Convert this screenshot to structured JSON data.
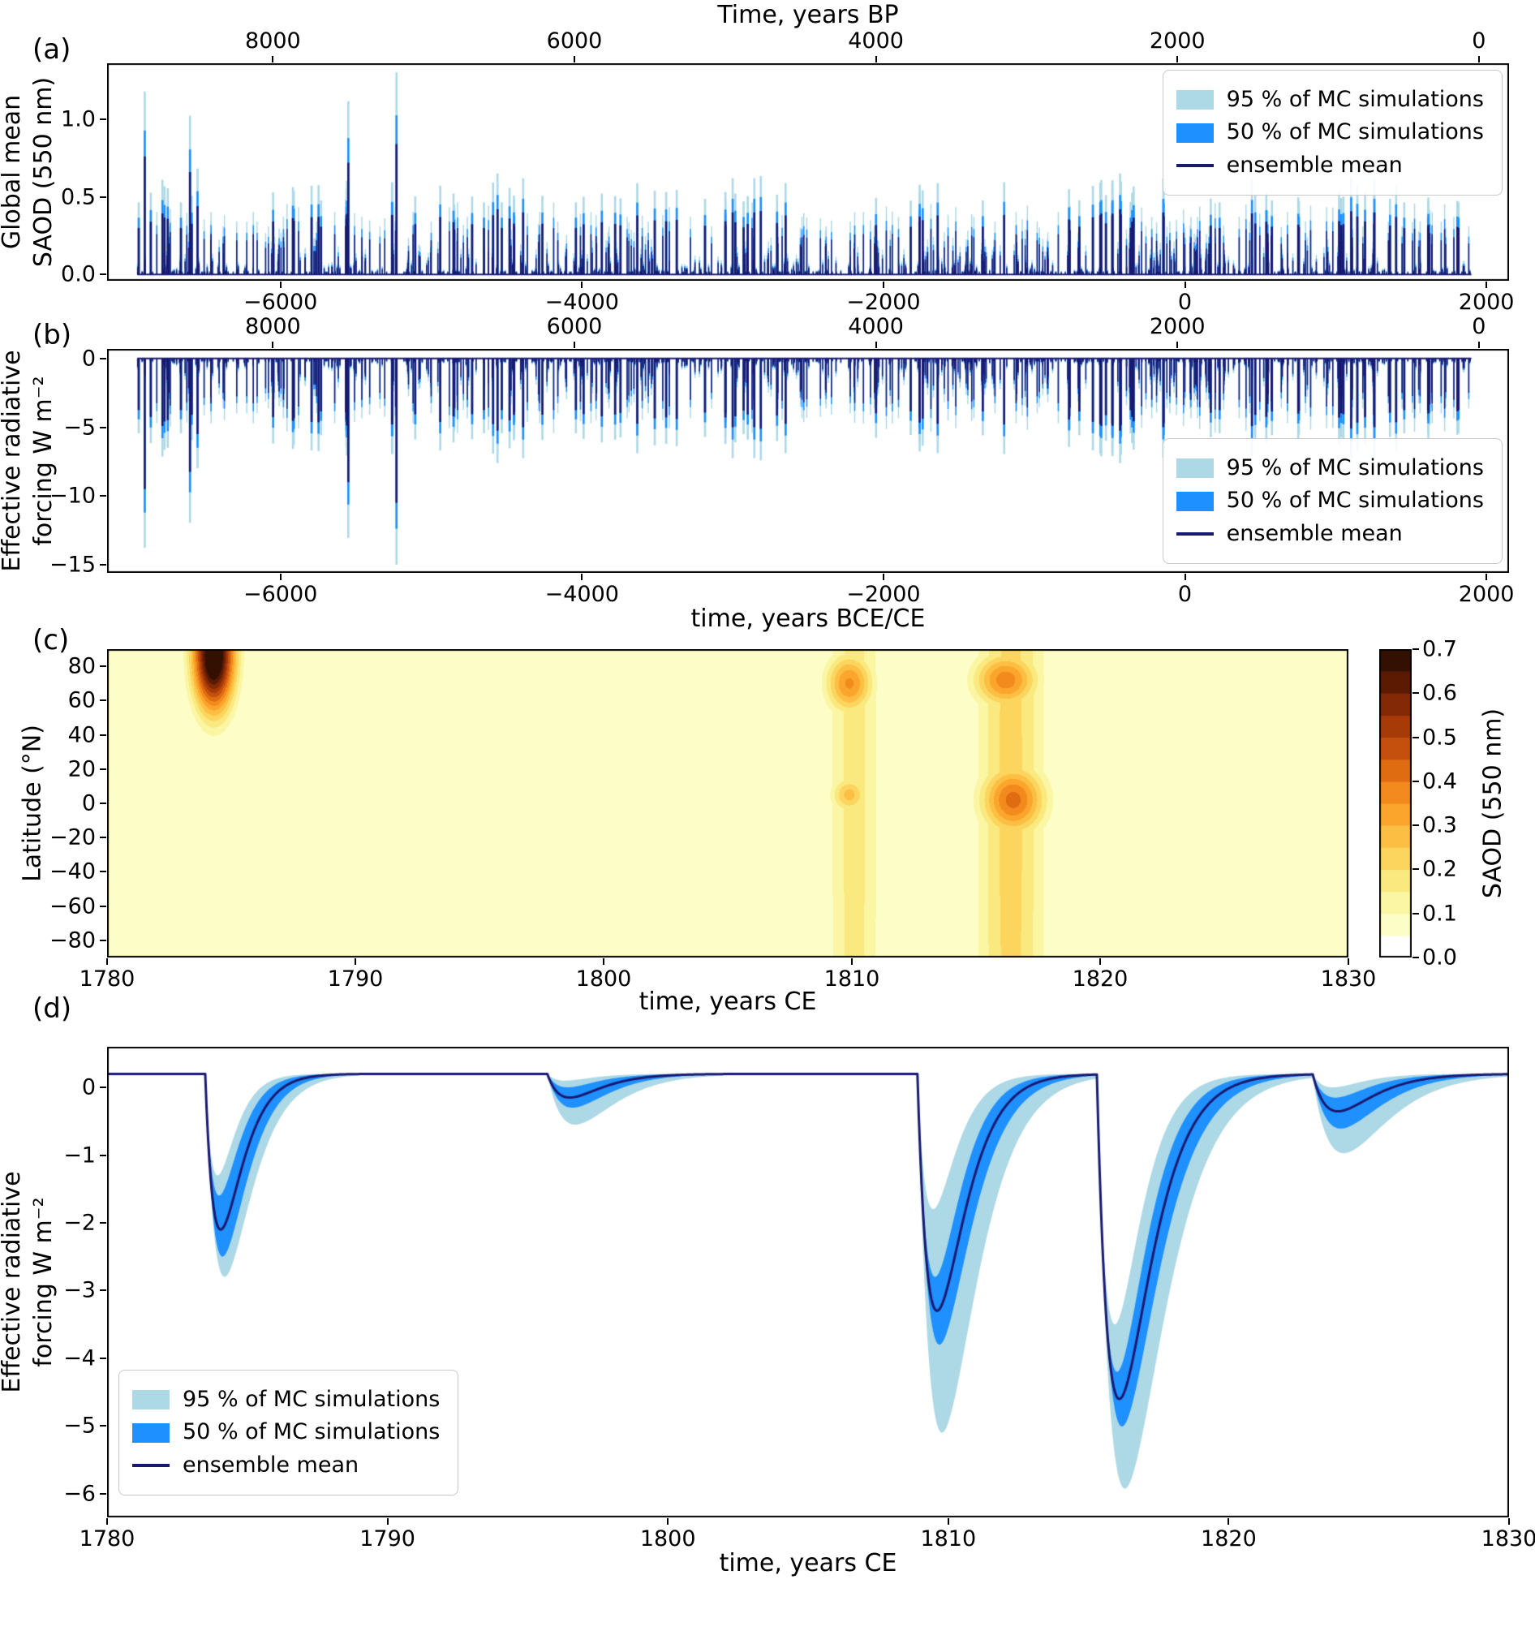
{
  "panels": {
    "a": "(a)",
    "b": "(b)",
    "c": "(c)",
    "d": "(d)"
  },
  "legend": {
    "p95": "95 % of MC simulations",
    "p50": "50 % of MC simulations",
    "mean": "ensemble mean"
  },
  "colors": {
    "p95_band": "#ADD8E6",
    "p50_band": "#1E90FF",
    "ensemble_mean": "#191970",
    "axis": "#000000",
    "background": "#FFFFFF",
    "heatmap_bands": [
      "#FFFFFF",
      "#FDFDC8",
      "#FBF6A3",
      "#FAE97F",
      "#FBD55D",
      "#FCBF43",
      "#FBA52C",
      "#F28A1D",
      "#E06C12",
      "#C5500D",
      "#A63B08",
      "#842905",
      "#5D1A03",
      "#331002"
    ]
  },
  "chart_data": [
    {
      "type": "bar",
      "panel": "a",
      "x_top_label": "Time, years BP",
      "ylabel_lines": [
        "Global mean",
        "SAOD (550 nm)"
      ],
      "x_range": [
        -7150,
        2150
      ],
      "y_range": [
        -0.04,
        1.36
      ],
      "x_ticks": [
        {
          "v": -6000,
          "label": "−6000"
        },
        {
          "v": -4000,
          "label": "−4000"
        },
        {
          "v": -2000,
          "label": "−2000"
        },
        {
          "v": 0,
          "label": "0"
        },
        {
          "v": 2000,
          "label": "2000"
        }
      ],
      "x_ticks_top_bp": [
        {
          "v": 8000,
          "label": "8000"
        },
        {
          "v": 6000,
          "label": "6000"
        },
        {
          "v": 4000,
          "label": "4000"
        },
        {
          "v": 2000,
          "label": "2000"
        },
        {
          "v": 0,
          "label": "0"
        }
      ],
      "y_ticks": [
        {
          "v": 0,
          "label": "0.0"
        },
        {
          "v": 0.5,
          "label": "0.5"
        },
        {
          "v": 1,
          "label": "1.0"
        }
      ],
      "band_multipliers": {
        "p95": 1.55,
        "p50": 1.22
      },
      "major_eruptions_saod_mean": [
        [
          -6940,
          0.3
        ],
        [
          -6900,
          0.76
        ],
        [
          -6860,
          0.34
        ],
        [
          -6820,
          0.26
        ],
        [
          -6740,
          0.2
        ],
        [
          -6660,
          0.3
        ],
        [
          -6600,
          0.66
        ],
        [
          -6550,
          0.44
        ],
        [
          -6460,
          0.26
        ],
        [
          -6380,
          0.2
        ],
        [
          -6290,
          0.22
        ],
        [
          -6180,
          0.26
        ],
        [
          -6080,
          0.2
        ],
        [
          -5980,
          0.24
        ],
        [
          -5880,
          0.28
        ],
        [
          -5760,
          0.22
        ],
        [
          -5640,
          0.26
        ],
        [
          -5550,
          0.72
        ],
        [
          -5460,
          0.24
        ],
        [
          -5340,
          0.2
        ],
        [
          -5230,
          0.84
        ],
        [
          -5120,
          0.26
        ],
        [
          -5000,
          0.22
        ],
        [
          -4880,
          0.28
        ],
        [
          -4760,
          0.24
        ],
        [
          -4650,
          0.3
        ],
        [
          -4560,
          0.42
        ],
        [
          -4480,
          0.36
        ],
        [
          -4390,
          0.4
        ],
        [
          -4280,
          0.26
        ],
        [
          -4160,
          0.22
        ],
        [
          -4040,
          0.3
        ],
        [
          -3940,
          0.26
        ],
        [
          -3820,
          0.2
        ],
        [
          -3700,
          0.24
        ],
        [
          -3560,
          0.22
        ],
        [
          -3420,
          0.28
        ],
        [
          -3280,
          0.24
        ],
        [
          -3140,
          0.2
        ],
        [
          -3000,
          0.4
        ],
        [
          -2860,
          0.24
        ],
        [
          -2700,
          0.2
        ],
        [
          -2540,
          0.24
        ],
        [
          -2380,
          0.2
        ],
        [
          -2220,
          0.22
        ],
        [
          -2060,
          0.2
        ],
        [
          -1900,
          0.24
        ],
        [
          -1760,
          0.34
        ],
        [
          -1640,
          0.38
        ],
        [
          -1520,
          0.28
        ],
        [
          -1400,
          0.24
        ],
        [
          -1260,
          0.22
        ],
        [
          -1120,
          0.26
        ],
        [
          -980,
          0.22
        ],
        [
          -840,
          0.26
        ],
        [
          -700,
          0.22
        ],
        [
          -560,
          0.24
        ],
        [
          -430,
          0.42
        ],
        [
          -350,
          0.34
        ],
        [
          -220,
          0.24
        ],
        [
          -100,
          0.22
        ],
        [
          40,
          0.24
        ],
        [
          160,
          0.2
        ],
        [
          230,
          0.3
        ],
        [
          360,
          0.24
        ],
        [
          430,
          0.22
        ],
        [
          540,
          0.34
        ],
        [
          680,
          0.26
        ],
        [
          800,
          0.22
        ],
        [
          940,
          0.28
        ],
        [
          1040,
          0.22
        ],
        [
          1110,
          0.24
        ],
        [
          1180,
          0.2
        ],
        [
          1257,
          0.4
        ],
        [
          1350,
          0.22
        ],
        [
          1455,
          0.3
        ],
        [
          1560,
          0.22
        ],
        [
          1640,
          0.26
        ],
        [
          1700,
          0.22
        ],
        [
          1784,
          0.24
        ],
        [
          1815,
          0.3
        ],
        [
          1883,
          0.2
        ]
      ],
      "minor_spikes": {
        "seed": 987654321,
        "count": 900,
        "x_min": -6950,
        "x_max": 1900,
        "h_min": 0.015,
        "h_scale": 0.4,
        "h_pow": 4
      }
    },
    {
      "type": "bar",
      "panel": "b",
      "ylabel_lines": [
        "Effective radiative",
        "forcing W m⁻²"
      ],
      "xlabel": "time, years BCE/CE",
      "x_range": [
        -7150,
        2150
      ],
      "y_range": [
        -15.6,
        0.7
      ],
      "x_ticks": [
        {
          "v": -6000,
          "label": "−6000"
        },
        {
          "v": -4000,
          "label": "−4000"
        },
        {
          "v": -2000,
          "label": "−2000"
        },
        {
          "v": 0,
          "label": "0"
        },
        {
          "v": 2000,
          "label": "2000"
        }
      ],
      "x_ticks_top_bp": [
        {
          "v": 8000,
          "label": "8000"
        },
        {
          "v": 6000,
          "label": "6000"
        },
        {
          "v": 4000,
          "label": "4000"
        },
        {
          "v": 2000,
          "label": "2000"
        },
        {
          "v": 0,
          "label": "0"
        }
      ],
      "y_ticks": [
        {
          "v": 0,
          "label": "0"
        },
        {
          "v": -5,
          "label": "−5"
        },
        {
          "v": -10,
          "label": "−10"
        },
        {
          "v": -15,
          "label": "−15"
        }
      ],
      "erf_per_saod_mean": -12.5,
      "erf_floor": -15.0,
      "band_multipliers": {
        "p95": 1.45,
        "p50": 1.18
      }
    },
    {
      "type": "heatmap",
      "panel": "c",
      "ylabel": "Latitude (°N)",
      "xlabel": "time, years CE",
      "x_range": [
        1780,
        1830
      ],
      "y_range": [
        -90,
        90
      ],
      "x_ticks": [
        {
          "v": 1780,
          "label": "1780"
        },
        {
          "v": 1790,
          "label": "1790"
        },
        {
          "v": 1800,
          "label": "1800"
        },
        {
          "v": 1810,
          "label": "1810"
        },
        {
          "v": 1820,
          "label": "1820"
        },
        {
          "v": 1830,
          "label": "1830"
        }
      ],
      "y_ticks": [
        {
          "v": 80,
          "label": "80"
        },
        {
          "v": 60,
          "label": "60"
        },
        {
          "v": 40,
          "label": "40"
        },
        {
          "v": 20,
          "label": "20"
        },
        {
          "v": 0,
          "label": "0"
        },
        {
          "v": -20,
          "label": "−20"
        },
        {
          "v": -40,
          "label": "−40"
        },
        {
          "v": -60,
          "label": "−60"
        },
        {
          "v": -80,
          "label": "−80"
        }
      ],
      "value_step": 0.05,
      "value_max": 0.7,
      "background_value": 0.07,
      "colorbar": {
        "label": "SAOD (550 nm)",
        "ticks": [
          {
            "v": 0.0,
            "label": "0.0"
          },
          {
            "v": 0.1,
            "label": "0.1"
          },
          {
            "v": 0.2,
            "label": "0.2"
          },
          {
            "v": 0.3,
            "label": "0.3"
          },
          {
            "v": 0.4,
            "label": "0.4"
          },
          {
            "v": 0.5,
            "label": "0.5"
          },
          {
            "v": 0.6,
            "label": "0.6"
          },
          {
            "v": 0.7,
            "label": "0.7"
          }
        ]
      },
      "events": [
        {
          "year": 1784.3,
          "sigma_t": 0.6,
          "lat": 86,
          "sigma_lat": 23,
          "peak_saod": 0.78
        },
        {
          "year": 1810.1,
          "sigma_t": 0.85,
          "lat": 0,
          "sigma_lat": 400,
          "peak_saod": 0.17
        },
        {
          "year": 1809.9,
          "sigma_t": 0.7,
          "lat": 70,
          "sigma_lat": 13,
          "peak_saod": 0.36
        },
        {
          "year": 1809.9,
          "sigma_t": 0.55,
          "lat": 5,
          "sigma_lat": 8,
          "peak_saod": 0.27
        },
        {
          "year": 1816.4,
          "sigma_t": 1.05,
          "lat": 0,
          "sigma_lat": 400,
          "peak_saod": 0.22
        },
        {
          "year": 1816.2,
          "sigma_t": 0.95,
          "lat": 72,
          "sigma_lat": 12,
          "peak_saod": 0.38
        },
        {
          "year": 1816.5,
          "sigma_t": 0.95,
          "lat": 2,
          "sigma_lat": 15,
          "peak_saod": 0.42
        }
      ]
    },
    {
      "type": "line",
      "panel": "d",
      "ylabel_lines": [
        "Effective radiative",
        "forcing W m⁻²"
      ],
      "xlabel": "time, years CE",
      "x_range": [
        1780,
        1830
      ],
      "y_range": [
        -6.35,
        0.6
      ],
      "x_ticks": [
        {
          "v": 1780,
          "label": "1780"
        },
        {
          "v": 1790,
          "label": "1790"
        },
        {
          "v": 1800,
          "label": "1800"
        },
        {
          "v": 1810,
          "label": "1810"
        },
        {
          "v": 1820,
          "label": "1820"
        },
        {
          "v": 1830,
          "label": "1830"
        }
      ],
      "y_ticks": [
        {
          "v": 0,
          "label": "0"
        },
        {
          "v": -1,
          "label": "−1"
        },
        {
          "v": -2,
          "label": "−2"
        },
        {
          "v": -3,
          "label": "−3"
        },
        {
          "v": -4,
          "label": "−4"
        },
        {
          "v": -5,
          "label": "−5"
        },
        {
          "v": -6,
          "label": "−6"
        }
      ],
      "baseline_wm2": 0.2,
      "events": [
        {
          "t0": 1783.5,
          "rise": 0.55,
          "mean_depth": 2.3,
          "p50_depth": [
            1.8,
            2.7
          ],
          "p95_depth": [
            1.5,
            3.0
          ]
        },
        {
          "t0": 1795.7,
          "rise": 0.8,
          "mean_depth": 0.35,
          "p50_depth": [
            0.2,
            0.5
          ],
          "p95_depth": [
            0.1,
            0.75
          ]
        },
        {
          "t0": 1808.9,
          "rise": 0.7,
          "mean_depth": 3.5,
          "p50_depth": [
            3.0,
            4.0
          ],
          "p95_depth": [
            2.0,
            5.3
          ]
        },
        {
          "t0": 1815.3,
          "rise": 0.8,
          "mean_depth": 4.8,
          "p50_depth": [
            4.4,
            5.2
          ],
          "p95_depth": [
            3.7,
            6.1
          ]
        },
        {
          "t0": 1823.0,
          "rise": 0.9,
          "mean_depth": 0.55,
          "p50_depth": [
            0.35,
            0.8
          ],
          "p95_depth": [
            0.2,
            1.15
          ]
        }
      ]
    }
  ]
}
